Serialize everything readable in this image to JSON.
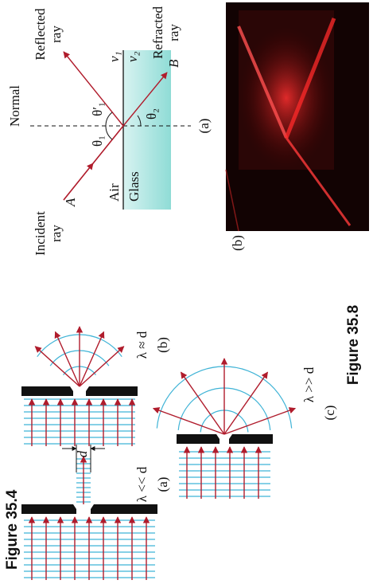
{
  "figure_35_4": {
    "title": "Figure 35.4",
    "panels": [
      {
        "condition": "λ << d",
        "label": "(a)",
        "dimension": "d"
      },
      {
        "condition": "λ ≈ d",
        "label": "(b)"
      },
      {
        "condition": "λ >> d",
        "label": "(c)"
      }
    ]
  },
  "figure_35_8": {
    "title": "Figure 35.8",
    "panel_a": {
      "normal": "Normal",
      "incident": [
        "Incident",
        "ray"
      ],
      "point_a": "A",
      "reflected": [
        "Reflected",
        "ray"
      ],
      "refracted": [
        "Refracted",
        "ray"
      ],
      "point_b": "B",
      "theta_1": "θ₁",
      "theta_1_prime": "θ′₁",
      "theta_2": "θ₂",
      "v_1": "v₁",
      "v_2": "v₂",
      "medium_1": "Air",
      "medium_2": "Glass",
      "label": "(a)"
    },
    "panel_b": {
      "label": "(b)"
    }
  }
}
